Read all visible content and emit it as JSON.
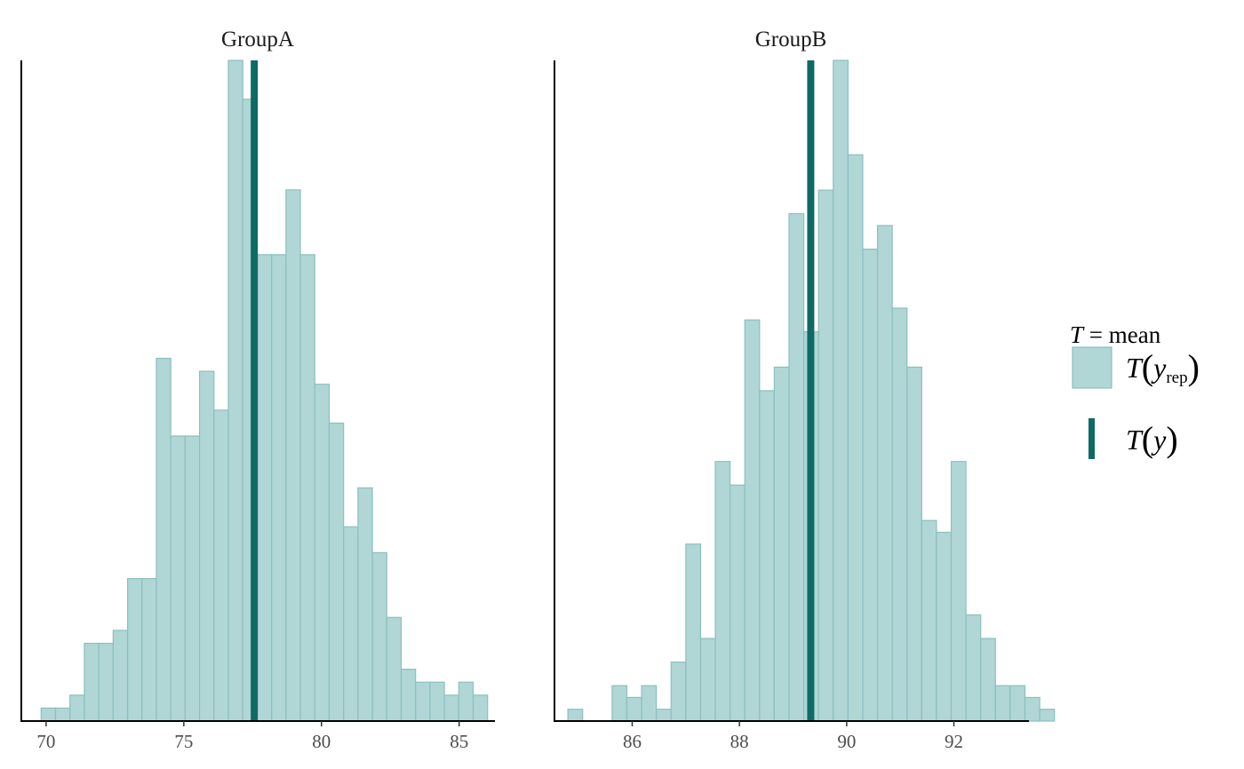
{
  "colors": {
    "hist_fill": "#b0d6d6",
    "hist_stroke": "#8cbfbf",
    "observed": "#0f6a66",
    "axis": "#000000"
  },
  "legend": {
    "title_symbol": "T",
    "title_rest": " = mean",
    "yrep_T": "T",
    "yrep_open": "(",
    "yrep_y": "y",
    "yrep_sub": "rep",
    "yrep_close": ")",
    "y_T": "T",
    "y_open": "(",
    "y_y": "y",
    "y_close": ")"
  },
  "chart_data": [
    {
      "type": "bar",
      "title": "GroupA",
      "x_ticks": [
        70,
        75,
        80,
        85
      ],
      "xlim": [
        69.1,
        86.3
      ],
      "bin_width": 0.523,
      "bin_start": 69.82,
      "counts": [
        1,
        1,
        2,
        6,
        6,
        7,
        11,
        11,
        28,
        22,
        22,
        27,
        24,
        51,
        48,
        36,
        36,
        41,
        36,
        26,
        23,
        15,
        18,
        13,
        8,
        4,
        3,
        3,
        2,
        3,
        2
      ],
      "ylim": [
        0,
        51
      ],
      "observed_value": 77.56
    },
    {
      "type": "bar",
      "title": "GroupB",
      "x_ticks": [
        86,
        88,
        90,
        92
      ],
      "xlim": [
        84.55,
        93.4
      ],
      "bin_width": 0.275,
      "bin_start": 84.8,
      "counts": [
        1,
        0,
        0,
        3,
        2,
        3,
        1,
        5,
        15,
        7,
        22,
        20,
        34,
        28,
        30,
        43,
        33,
        45,
        56,
        48,
        40,
        42,
        35,
        30,
        17,
        16,
        22,
        9,
        7,
        3,
        3,
        2,
        1
      ],
      "ylim": [
        0,
        56
      ],
      "observed_value": 89.33
    }
  ]
}
